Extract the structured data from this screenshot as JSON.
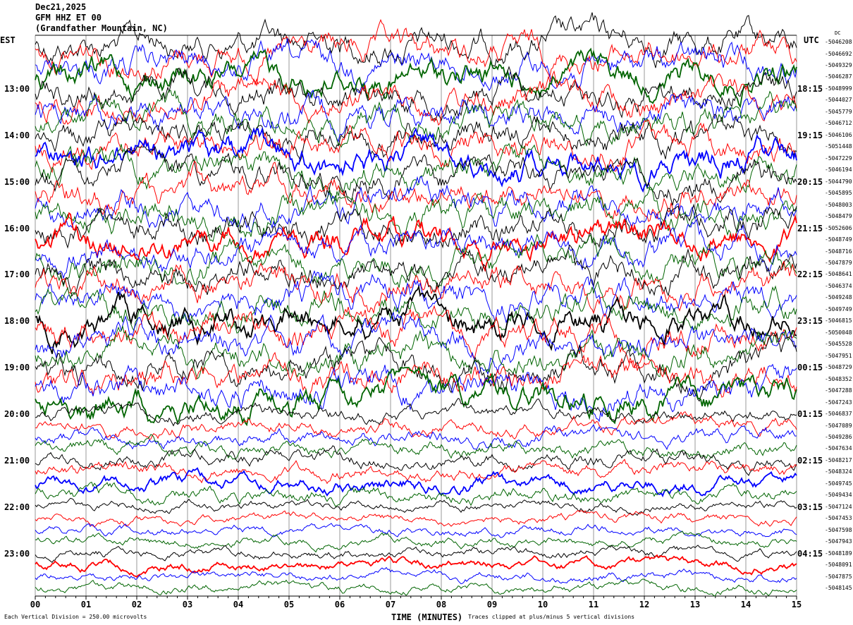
{
  "header": {
    "date": "Dec21,2025",
    "station": "GFM HHZ ET 00",
    "location": "(Grandfather Mountain, NC)"
  },
  "left_tz": "EST",
  "right_tz": "UTC",
  "dc_label": "DC",
  "footer": {
    "scale": "Each Vertical Division =  250.00 microvolts",
    "clip": "Traces clipped at plus/minus 5 vertical divisions"
  },
  "chart_data": {
    "type": "line",
    "xlabel": "TIME (MINUTES)",
    "x_ticks": [
      "00",
      "01",
      "02",
      "03",
      "04",
      "05",
      "06",
      "07",
      "08",
      "09",
      "10",
      "11",
      "12",
      "13",
      "14",
      "15"
    ],
    "xlim": [
      0,
      15
    ],
    "trace_colors": [
      "#000000",
      "#ff0000",
      "#0000ff",
      "#006400"
    ],
    "est_labels": [
      "13:00",
      "14:00",
      "15:00",
      "16:00",
      "17:00",
      "18:00",
      "19:00",
      "20:00",
      "21:00",
      "22:00",
      "23:00"
    ],
    "utc_labels": [
      "18:15",
      "19:15",
      "20:15",
      "21:15",
      "22:15",
      "23:15",
      "00:15",
      "01:15",
      "02:15",
      "03:15",
      "04:15"
    ],
    "dc_offsets": [
      "-5046208",
      "-5046692",
      "-5049329",
      "-5046287",
      "-5048999",
      "-5044027",
      "-5045779",
      "-5046712",
      "-5046106",
      "-5051448",
      "-5047229",
      "-5046194",
      "-5044790",
      "-5045895",
      "-5048003",
      "-5048479",
      "-5052606",
      "-5048749",
      "-5048716",
      "-5047879",
      "-5048641",
      "-5046374",
      "-5049248",
      "-5049749",
      "-5046815",
      "-5050048",
      "-5045528",
      "-5047951",
      "-5048729",
      "-5048352",
      "-5047288",
      "-5047243",
      "-5046837",
      "-5047089",
      "-5049286",
      "-5047634",
      "-5048217",
      "-5048324",
      "-5049745",
      "-5049434",
      "-5047124",
      "-5047453",
      "-5047598",
      "-5047943",
      "-5048189",
      "-5048091",
      "-5047875",
      "-5048145"
    ]
  }
}
